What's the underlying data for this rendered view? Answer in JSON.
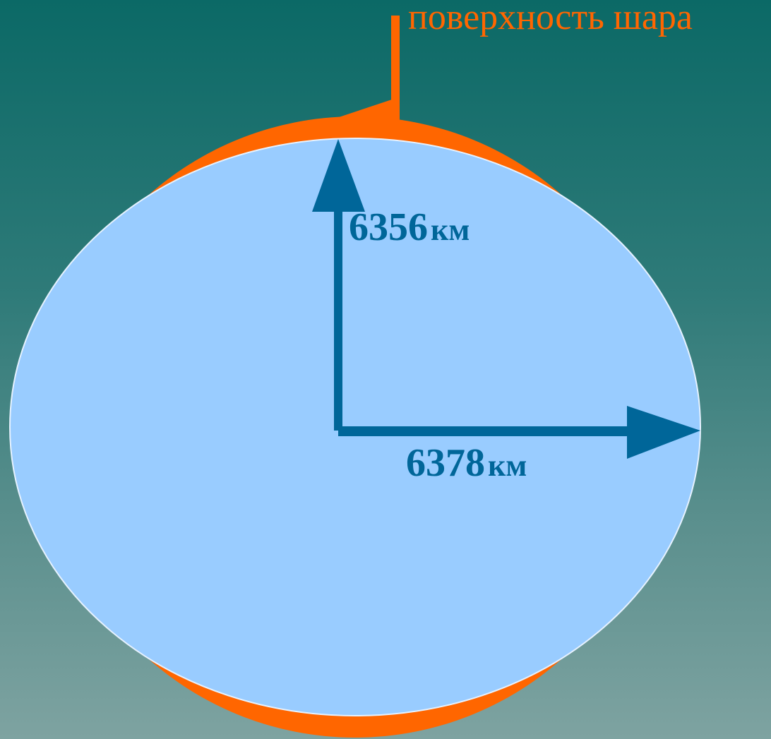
{
  "surface_label": "поверхность шара",
  "polar_radius": {
    "value": "6356",
    "unit": "км"
  },
  "equatorial_radius": {
    "value": "6378",
    "unit": "км"
  },
  "colors": {
    "sphere_surface": "#ff6600",
    "ellipsoid_fill": "#99ccff",
    "arrows": "#006699",
    "background_top": "#0b6966",
    "background_bottom": "#7ea3a1"
  }
}
